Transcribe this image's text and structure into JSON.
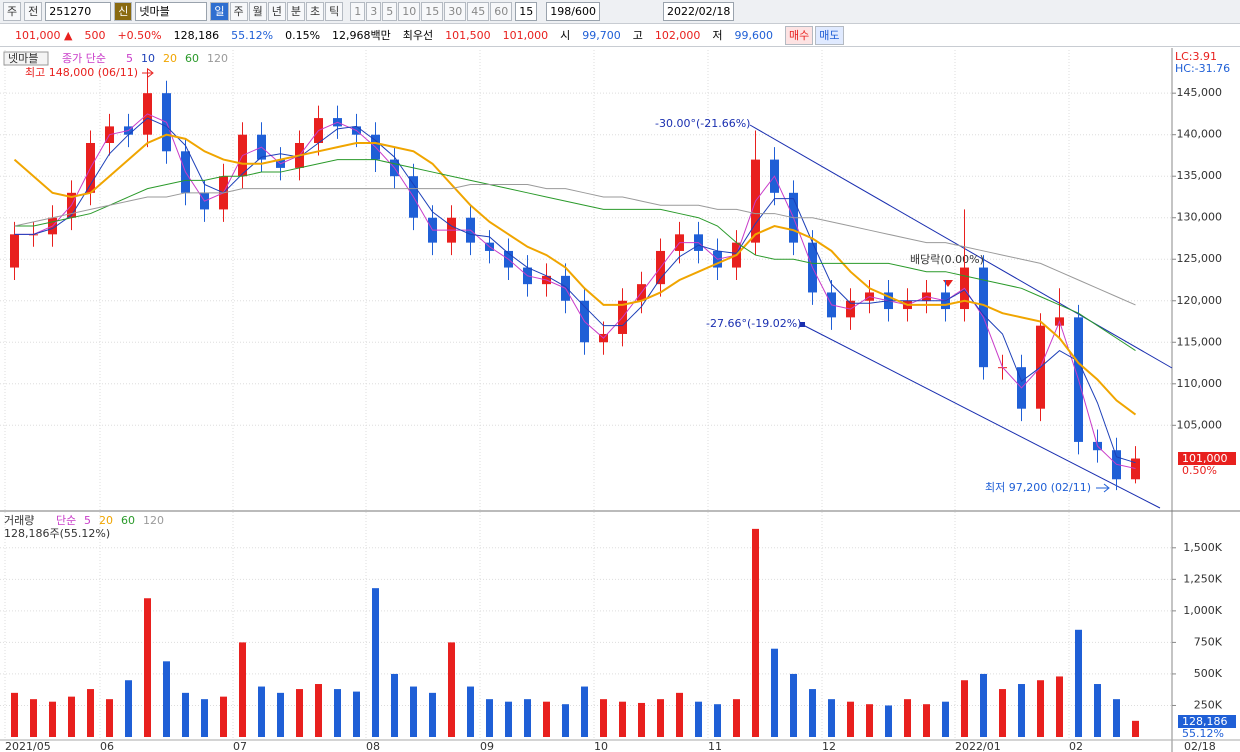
{
  "toolbar": {
    "market": "주",
    "range": "전",
    "code": "251270",
    "badge": "신",
    "name": "넷마블",
    "periods": [
      "일",
      "주",
      "월",
      "년",
      "분",
      "초",
      "틱"
    ],
    "intervals": [
      "1",
      "3",
      "5",
      "10",
      "15",
      "30",
      "45",
      "60"
    ],
    "interval_select": "15",
    "count": "198",
    "count_max": "/600",
    "date": "2022/02/18"
  },
  "info_bar": {
    "price": "101,000 ▲",
    "change": "500",
    "change_pct": "+0.50%",
    "volume": "128,186",
    "volume_pct": "55.12%",
    "turnover": "0.15%",
    "amount": "12,968백만",
    "best_label": "최우선",
    "best_ask": "101,500",
    "best_bid": "101,000",
    "open_label": "시",
    "open": "99,700",
    "high_label": "고",
    "high": "102,000",
    "low_label": "저",
    "low": "99,600",
    "buy": "매수",
    "sell": "매도"
  },
  "chart_data": {
    "type": "candlestick",
    "title": "넷마블",
    "legend_prefix": "종가 단순",
    "categories": [
      "2021/05",
      null,
      null,
      null,
      null,
      "06",
      null,
      null,
      null,
      null,
      null,
      null,
      "07",
      null,
      null,
      null,
      null,
      null,
      null,
      "08",
      null,
      null,
      null,
      null,
      null,
      "09",
      null,
      null,
      null,
      null,
      null,
      "10",
      null,
      null,
      null,
      null,
      null,
      "11",
      null,
      null,
      null,
      null,
      null,
      "12",
      null,
      null,
      null,
      null,
      null,
      null,
      "2022/01",
      null,
      null,
      null,
      null,
      null,
      "02",
      null,
      null,
      null
    ],
    "last_date": "02/18",
    "open": [
      124000,
      128000,
      128000,
      130000,
      133000,
      139000,
      141000,
      140000,
      145000,
      138000,
      133000,
      131000,
      135000,
      140000,
      137000,
      136000,
      139000,
      142000,
      141000,
      140000,
      137000,
      135000,
      130000,
      127000,
      130000,
      127000,
      126000,
      124000,
      122000,
      123000,
      120000,
      115000,
      116000,
      120000,
      122000,
      126000,
      128000,
      126000,
      124000,
      127000,
      137000,
      133000,
      127000,
      121000,
      118000,
      120000,
      121000,
      119000,
      120000,
      121000,
      119000,
      124000,
      112000,
      112000,
      107000,
      117000,
      118000,
      103000,
      102000,
      98500
    ],
    "high": [
      129500,
      129500,
      131500,
      134500,
      140500,
      142500,
      142500,
      148000,
      146500,
      139500,
      134500,
      136500,
      141500,
      141500,
      138500,
      140500,
      143500,
      143500,
      142500,
      141500,
      138500,
      136500,
      131500,
      131500,
      131500,
      128500,
      127500,
      125500,
      124500,
      124500,
      121500,
      117500,
      121500,
      123500,
      127500,
      129500,
      129500,
      127500,
      128500,
      140500,
      138500,
      134500,
      128500,
      122500,
      121500,
      122500,
      122500,
      121500,
      122500,
      122500,
      131000,
      125500,
      113500,
      113500,
      118500,
      121500,
      119500,
      104500,
      103500,
      102500
    ],
    "low": [
      122500,
      126500,
      126500,
      128500,
      131500,
      137500,
      138500,
      138500,
      136500,
      131500,
      129500,
      129500,
      133500,
      135500,
      134500,
      134500,
      137500,
      139500,
      138500,
      135500,
      133500,
      128500,
      125500,
      125500,
      125500,
      124500,
      122500,
      120500,
      120500,
      118500,
      113500,
      113500,
      114500,
      118500,
      120500,
      124500,
      124500,
      122500,
      122500,
      125500,
      131500,
      125500,
      119500,
      116500,
      116500,
      118500,
      117500,
      117500,
      118500,
      117500,
      117500,
      110500,
      110500,
      105500,
      105500,
      115500,
      101500,
      100500,
      97200,
      98000
    ],
    "close": [
      128000,
      128000,
      130000,
      133000,
      139000,
      141000,
      140000,
      145000,
      138000,
      133000,
      131000,
      135000,
      140000,
      137000,
      136000,
      139000,
      142000,
      141000,
      140000,
      137000,
      135000,
      130000,
      127000,
      130000,
      127000,
      126000,
      124000,
      122000,
      123000,
      120000,
      115000,
      116000,
      120000,
      122000,
      126000,
      128000,
      126000,
      124000,
      127000,
      137000,
      133000,
      127000,
      121000,
      118000,
      120000,
      121000,
      119000,
      120000,
      121000,
      119000,
      124000,
      112000,
      112000,
      107000,
      117000,
      118000,
      103000,
      102000,
      98500,
      101000
    ],
    "up_color": "#e8201e",
    "down_color": "#1f5fd6",
    "ylim": [
      94800,
      150200
    ],
    "yticks": [
      {
        "value": 105000,
        "label": "105,000"
      },
      {
        "value": 110000,
        "label": "110,000"
      },
      {
        "value": 115000,
        "label": "115,000"
      },
      {
        "value": 120000,
        "label": "120,000"
      },
      {
        "value": 125000,
        "label": "125,000"
      },
      {
        "value": 130000,
        "label": "130,000"
      },
      {
        "value": 135000,
        "label": "135,000"
      },
      {
        "value": 140000,
        "label": "140,000"
      },
      {
        "value": 145000,
        "label": "145,000"
      }
    ],
    "series": [
      {
        "name": "5",
        "color": "#c93cc9",
        "values": [
          128000,
          128000,
          129000,
          131500,
          136000,
          140000,
          140500,
          142500,
          141500,
          135500,
          132000,
          133000,
          137500,
          138500,
          136500,
          137500,
          140500,
          141500,
          140500,
          138500,
          136000,
          132500,
          128500,
          128500,
          128500,
          126500,
          125000,
          123000,
          122500,
          121500,
          117500,
          115500,
          118000,
          121000,
          124000,
          127000,
          127000,
          125000,
          125500,
          132000,
          135000,
          130000,
          124000,
          119500,
          119000,
          120500,
          120000,
          119500,
          120500,
          120000,
          121500,
          118000,
          112000,
          109500,
          112000,
          117500,
          110500,
          102500,
          100300,
          99800
        ]
      },
      {
        "name": "10",
        "color": "#1c3fb8",
        "values": [
          128000,
          128000,
          128700,
          130300,
          134000,
          137700,
          140000,
          142000,
          141000,
          138700,
          134000,
          133000,
          135300,
          137300,
          137700,
          137300,
          139000,
          140700,
          141000,
          139300,
          137300,
          134000,
          130700,
          129000,
          128000,
          127700,
          125700,
          124000,
          123000,
          121700,
          119300,
          117000,
          117000,
          119300,
          122700,
          125300,
          126700,
          126000,
          125700,
          129300,
          132300,
          132300,
          127000,
          122000,
          119700,
          119700,
          120000,
          120000,
          120000,
          120000,
          121300,
          118300,
          116000,
          110300,
          112000,
          114000,
          112700,
          107700,
          101200,
          100500
        ]
      },
      {
        "name": "20",
        "color": "#f0a500",
        "values": [
          137000,
          135000,
          133000,
          132500,
          133000,
          135000,
          137000,
          139000,
          140000,
          139500,
          138000,
          137000,
          136500,
          136500,
          137000,
          137500,
          138000,
          138500,
          139000,
          139000,
          138500,
          138000,
          136500,
          134000,
          131500,
          129500,
          128000,
          126500,
          125500,
          124000,
          121500,
          119500,
          119500,
          120000,
          121000,
          122500,
          123500,
          124500,
          125500,
          128000,
          129000,
          128500,
          127500,
          126000,
          123500,
          121500,
          120500,
          119500,
          119500,
          119500,
          120000,
          119500,
          118500,
          118000,
          117500,
          115500,
          112500,
          110500,
          108000,
          106300
        ]
      },
      {
        "name": "60",
        "color": "#2a9a2a",
        "values": [
          129000,
          129000,
          129500,
          130000,
          130500,
          131500,
          132500,
          133500,
          134000,
          134500,
          134500,
          135000,
          135000,
          135500,
          135500,
          136000,
          136500,
          137000,
          137000,
          137000,
          136500,
          136000,
          135500,
          135000,
          134500,
          134000,
          133500,
          133000,
          132500,
          132000,
          131500,
          131000,
          131000,
          131000,
          131000,
          130500,
          130000,
          129000,
          127000,
          125500,
          125000,
          125000,
          124500,
          124500,
          124500,
          124500,
          124500,
          124000,
          123500,
          123500,
          123000,
          122500,
          122000,
          121500,
          120500,
          119500,
          118500,
          117000,
          115500,
          114000
        ]
      },
      {
        "name": "120",
        "color": "#9a9a9a",
        "values": [
          129000,
          129500,
          130000,
          130500,
          131000,
          131500,
          132000,
          132500,
          132500,
          133000,
          133000,
          133000,
          133500,
          133500,
          133500,
          133500,
          133500,
          133500,
          133500,
          133500,
          133500,
          133500,
          133500,
          133500,
          134000,
          134000,
          134000,
          134000,
          133500,
          133500,
          133000,
          132500,
          132500,
          132000,
          131500,
          131500,
          131500,
          131000,
          131000,
          130500,
          130500,
          130000,
          130000,
          129500,
          129000,
          128500,
          128000,
          127500,
          127000,
          127000,
          126500,
          126000,
          125500,
          125000,
          124500,
          123500,
          122500,
          121500,
          120500,
          119500
        ]
      }
    ],
    "annotations": {
      "max": "최고 148,000 (06/11)",
      "min": "최저 97,200 (02/11)",
      "trend_upper": "-30.00°(-21.66%)",
      "trend_lower": "-27.66°(-19.02%)",
      "ex_dividend": "배당락(0.00%)",
      "lc": "LC:3.91",
      "hc": "HC:-31.76",
      "last_price": "101,000",
      "last_pct": "0.50%"
    },
    "volume": {
      "title": "거래량",
      "legend_prefix": "단순",
      "legend": [
        {
          "name": "5",
          "color": "#c93cc9"
        },
        {
          "name": "20",
          "color": "#f0a500"
        },
        {
          "name": "60",
          "color": "#2a9a2a"
        },
        {
          "name": "120",
          "color": "#9a9a9a"
        }
      ],
      "info": "128,186주(55.12%)",
      "last_label": "128,186",
      "last_pct": "55.12%",
      "values": [
        350000,
        300000,
        280000,
        320000,
        380000,
        300000,
        450000,
        1100000,
        600000,
        350000,
        300000,
        320000,
        750000,
        400000,
        350000,
        380000,
        420000,
        380000,
        360000,
        1180000,
        500000,
        400000,
        350000,
        750000,
        400000,
        300000,
        280000,
        300000,
        280000,
        260000,
        400000,
        300000,
        280000,
        270000,
        300000,
        350000,
        280000,
        260000,
        300000,
        1650000,
        700000,
        500000,
        380000,
        300000,
        280000,
        260000,
        250000,
        300000,
        260000,
        280000,
        450000,
        500000,
        380000,
        420000,
        450000,
        480000,
        850000,
        420000,
        300000,
        128186
      ],
      "ylim": [
        0,
        1760000
      ],
      "yticks": [
        {
          "value": 250000,
          "label": "250K"
        },
        {
          "value": 500000,
          "label": "500K"
        },
        {
          "value": 750000,
          "label": "750K"
        },
        {
          "value": 1000000,
          "label": "1,000K"
        },
        {
          "value": 1250000,
          "label": "1,250K"
        },
        {
          "value": 1500000,
          "label": "1,500K"
        }
      ]
    }
  }
}
